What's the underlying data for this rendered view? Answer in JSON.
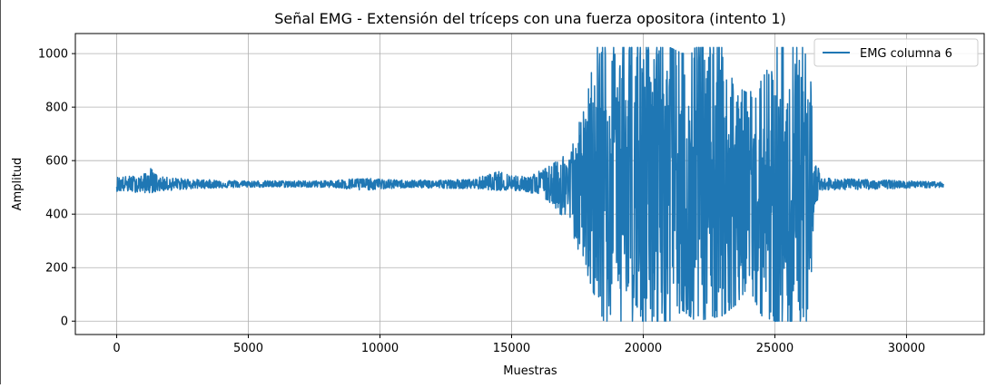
{
  "chart_data": {
    "type": "line",
    "title": "Señal EMG - Extensión del tríceps con una fuerza opositora (intento 1)",
    "xlabel": "Muestras",
    "ylabel": "Amplitud",
    "xlim": [
      -1570,
      32950
    ],
    "ylim": [
      -50,
      1075
    ],
    "xticks": [
      0,
      5000,
      10000,
      15000,
      20000,
      25000,
      30000
    ],
    "yticks": [
      0,
      200,
      400,
      600,
      800,
      1000
    ],
    "grid": true,
    "legend_position": "top-right",
    "color": "#1f77b4",
    "series": [
      {
        "name": "EMG columna 6",
        "n_samples": 31400,
        "baseline": 512,
        "clip_max": 1023,
        "clip_min": 0,
        "envelope": [
          {
            "x": 0,
            "max": 540,
            "min": 485
          },
          {
            "x": 1000,
            "max": 545,
            "min": 480
          },
          {
            "x": 1250,
            "max": 578,
            "min": 478
          },
          {
            "x": 1600,
            "max": 540,
            "min": 485
          },
          {
            "x": 3000,
            "max": 530,
            "min": 495
          },
          {
            "x": 5000,
            "max": 525,
            "min": 500
          },
          {
            "x": 8000,
            "max": 525,
            "min": 500
          },
          {
            "x": 9200,
            "max": 535,
            "min": 488
          },
          {
            "x": 11000,
            "max": 527,
            "min": 498
          },
          {
            "x": 13500,
            "max": 530,
            "min": 495
          },
          {
            "x": 14500,
            "max": 560,
            "min": 488
          },
          {
            "x": 15500,
            "max": 540,
            "min": 485
          },
          {
            "x": 16000,
            "max": 560,
            "min": 470
          },
          {
            "x": 16600,
            "max": 590,
            "min": 430
          },
          {
            "x": 17200,
            "max": 650,
            "min": 350
          },
          {
            "x": 17800,
            "max": 800,
            "min": 200
          },
          {
            "x": 18200,
            "max": 1023,
            "min": 80
          },
          {
            "x": 18500,
            "max": 1023,
            "min": 0
          },
          {
            "x": 19500,
            "max": 1023,
            "min": 0
          },
          {
            "x": 20500,
            "max": 1023,
            "min": 0
          },
          {
            "x": 21000,
            "max": 1023,
            "min": 0
          },
          {
            "x": 21500,
            "max": 1000,
            "min": 40
          },
          {
            "x": 22000,
            "max": 1023,
            "min": 0
          },
          {
            "x": 23000,
            "max": 1023,
            "min": 20
          },
          {
            "x": 23500,
            "max": 880,
            "min": 60
          },
          {
            "x": 24000,
            "max": 850,
            "min": 130
          },
          {
            "x": 24500,
            "max": 900,
            "min": 20
          },
          {
            "x": 25000,
            "max": 1023,
            "min": 0
          },
          {
            "x": 26000,
            "max": 1023,
            "min": 0
          },
          {
            "x": 26300,
            "max": 1023,
            "min": 0
          },
          {
            "x": 26500,
            "max": 620,
            "min": 420
          },
          {
            "x": 26800,
            "max": 535,
            "min": 490
          },
          {
            "x": 28500,
            "max": 530,
            "min": 492
          },
          {
            "x": 31400,
            "max": 520,
            "min": 500
          }
        ]
      }
    ]
  }
}
